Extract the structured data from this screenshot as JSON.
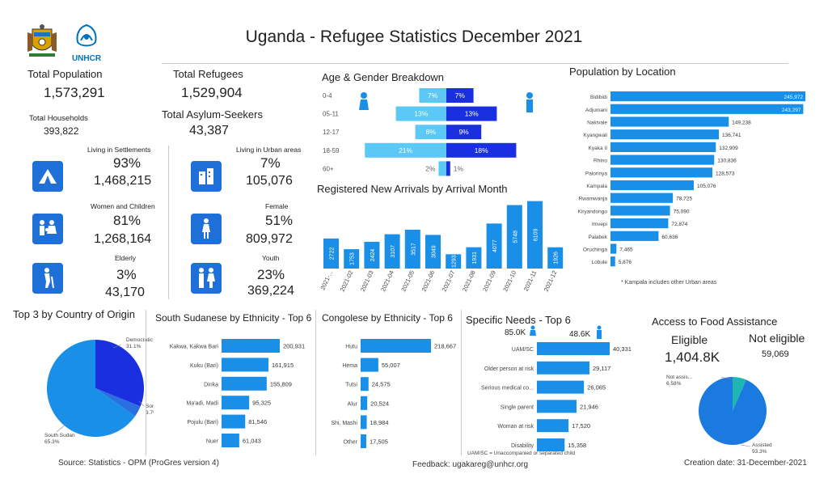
{
  "title": "Uganda  - Refugee Statistics December 2021",
  "logos": {
    "left": "uganda-coat-of-arms",
    "right": "UNHCR"
  },
  "logo_text": "UNHCR",
  "kpis": {
    "total_population_label": "Total Population",
    "total_population": "1,573,291",
    "total_households_label": "Total Households",
    "total_households": "393,822",
    "total_refugees_label": "Total Refugees",
    "total_refugees": "1,529,904",
    "total_asylum_label": "Total Asylum-Seekers",
    "total_asylum": "43,387",
    "settlements_label": "Living in Settlements",
    "settlements_pct": "93%",
    "settlements_val": "1,468,215",
    "urban_label": "Living in Urban areas",
    "urban_pct": "7%",
    "urban_val": "105,076",
    "women_children_label": "Women and Children",
    "women_children_pct": "81%",
    "women_children_val": "1,268,164",
    "female_label": "Female",
    "female_pct": "51%",
    "female_val": "809,972",
    "elderly_label": "Elderly",
    "elderly_pct": "3%",
    "elderly_val": "43,170",
    "youth_label": "Youth",
    "youth_pct": "23%",
    "youth_val": "369,224"
  },
  "headings": {
    "age_gender": "Age & Gender Breakdown",
    "arrivals": "Registered New Arrivals by Arrival Month",
    "location": "Population by Location",
    "origin": "Top 3 by Country of Origin",
    "ss_ethnicity": "South Sudanese by Ethnicity - Top 6",
    "congo_ethnicity": "Congolese by Ethnicity - Top 6",
    "needs": "Specific Needs - Top 6",
    "food": "Access to Food Assistance"
  },
  "needs_totals": {
    "female": "85.0K",
    "male": "48.6K"
  },
  "food": {
    "eligible_label": "Eligible",
    "eligible_value": "1,404.8K",
    "not_eligible_label": "Not eligible",
    "not_eligible_value": "59,069"
  },
  "notes": {
    "location": "* Kampala includes other Urban areas",
    "needs": "UAM/SC = Unaccompanied or separated child"
  },
  "footer": {
    "source": "Source: Statistics - OPM (ProGres version 4)",
    "feedback": "Feedback: ugakareg@unhcr.org",
    "created": "Creation date: 31-December-2021"
  },
  "colors": {
    "primary": "#1a8fe8",
    "dark_blue": "#1a2fe0",
    "light_blue": "#5bc8f5",
    "teal": "#1fb5b5"
  },
  "chart_data": [
    {
      "id": "age_gender",
      "type": "bar",
      "categories": [
        "0-4",
        "05-11",
        "12-17",
        "18-59",
        "60+"
      ],
      "series": [
        {
          "values": [
            7,
            13,
            8,
            21,
            2
          ],
          "labels": [
            "7%",
            "13%",
            "8%",
            "21%",
            "2%"
          ]
        },
        {
          "values": [
            7,
            13,
            9,
            18,
            1
          ],
          "labels": [
            "7%",
            "13%",
            "9%",
            "18%",
            "1%"
          ]
        }
      ]
    },
    {
      "id": "arrivals",
      "type": "bar",
      "categories": [
        "2021-...",
        "2021-02",
        "2021-03",
        "2021-04",
        "2021-05",
        "2021-06",
        "2021-07",
        "2021-08",
        "2021-09",
        "2021-10",
        "2021-11",
        "2021-12"
      ],
      "values": [
        2722,
        1753,
        2424,
        3107,
        3517,
        3049,
        1293,
        1931,
        4077,
        5748,
        6109,
        1926
      ]
    },
    {
      "id": "location",
      "type": "bar",
      "categories": [
        "Bidibidi",
        "Adjumani",
        "Nakivale",
        "Kyangwali",
        "Kyaka II",
        "Rhino",
        "Palorinya",
        "Kampala",
        "Rwamwanja",
        "Kiryandongo",
        "Imvepi",
        "Palabek",
        "Oruchinga",
        "Lobule"
      ],
      "values": [
        245972,
        243297,
        149238,
        136741,
        132909,
        130836,
        128573,
        105076,
        78725,
        75090,
        72874,
        60636,
        7465,
        5876
      ],
      "labels": [
        "245,972",
        "243,297",
        "149,238",
        "136,741",
        "132,909",
        "130,836",
        "128,573",
        "105,076",
        "78,725",
        "75,090",
        "72,874",
        "60,636",
        "7,465",
        "5,876"
      ]
    },
    {
      "id": "origin",
      "type": "pie",
      "labels": [
        "Democratic Re...",
        "Somalia",
        "South Sudan"
      ],
      "values": [
        31.1,
        3.7,
        65.3
      ],
      "pct_labels": [
        "31.1%",
        "3.7%",
        "65.3%"
      ]
    },
    {
      "id": "ss_ethnicity",
      "type": "bar",
      "categories": [
        "Kakwa, Kakwa Bari",
        "Kuku (Bari)",
        "Dinka",
        "Ma'adi, Madi",
        "Pojulu (Bari)",
        "Nuer"
      ],
      "values": [
        200931,
        161915,
        155809,
        95325,
        81546,
        61043
      ],
      "labels": [
        "200,931",
        "161,915",
        "155,809",
        "95,325",
        "81,546",
        "61,043"
      ]
    },
    {
      "id": "congo_ethnicity",
      "type": "bar",
      "categories": [
        "Hutu",
        "Hema",
        "Tutsi",
        "Alur",
        "Shi, Mashi",
        "Other"
      ],
      "values": [
        218667,
        55007,
        24575,
        20524,
        18984,
        17505
      ],
      "labels": [
        "218,667",
        "55,007",
        "24,575",
        "20,524",
        "18,984",
        "17,505"
      ]
    },
    {
      "id": "needs",
      "type": "bar",
      "categories": [
        "UAM/SC",
        "Older person at risk",
        "Serious medical co...",
        "Single parent",
        "Woman at risk",
        "Disability"
      ],
      "values": [
        40331,
        29117,
        26065,
        21946,
        17520,
        15358
      ],
      "labels": [
        "40,331",
        "29,117",
        "26,065",
        "21,946",
        "17,520",
        "15,358"
      ]
    },
    {
      "id": "food",
      "type": "pie",
      "labels": [
        "Not assis...",
        "Assisted"
      ],
      "values": [
        6.58,
        93.3
      ],
      "pct_labels": [
        "6.58%",
        "93.3%"
      ]
    }
  ]
}
